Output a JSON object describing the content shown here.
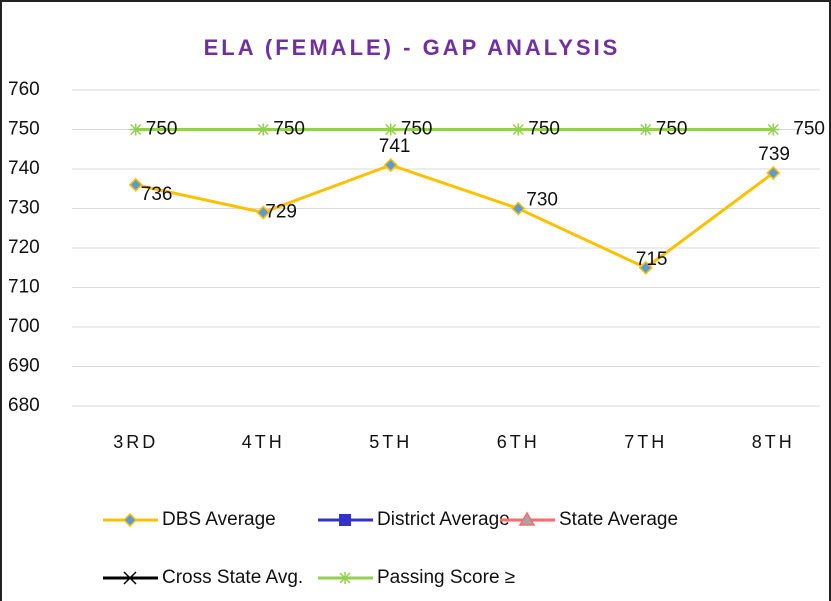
{
  "chart_data": {
    "type": "line",
    "title": "ELA (FEMALE) - GAP ANALYSIS",
    "categories": [
      "3RD",
      "4TH",
      "5TH",
      "6TH",
      "7TH",
      "8TH"
    ],
    "series": [
      {
        "name": "DBS Average",
        "color": "#ffc000",
        "values": [
          736,
          729,
          741,
          730,
          715,
          739
        ]
      },
      {
        "name": "District Average",
        "color": "#3333cc",
        "values": [
          null,
          null,
          null,
          null,
          null,
          null
        ]
      },
      {
        "name": "State Average",
        "color": "#ff6b6b",
        "values": [
          null,
          null,
          null,
          null,
          null,
          null
        ]
      },
      {
        "name": "Cross State Avg.",
        "color": "#000000",
        "values": [
          null,
          null,
          null,
          null,
          null,
          null
        ]
      },
      {
        "name": "Passing Score ≥",
        "color": "#92d050",
        "values": [
          750,
          750,
          750,
          750,
          750,
          750
        ]
      }
    ],
    "ylim": [
      680,
      760
    ],
    "yticks": [
      680,
      690,
      700,
      710,
      720,
      730,
      740,
      750,
      760
    ],
    "grid": true
  }
}
